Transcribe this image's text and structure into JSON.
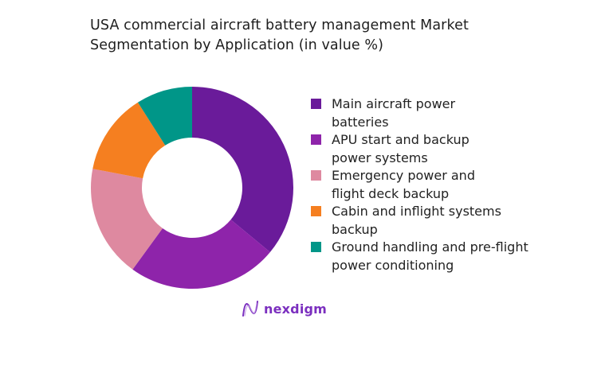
{
  "chart_data": {
    "type": "pie",
    "subtype": "donut",
    "title": "USA commercial aircraft battery management Market Segmentation by Application (in value %)",
    "categories": [
      "Main aircraft power batteries",
      "APU start and backup power systems",
      "Emergency power and flight deck backup",
      "Cabin and inflight systems backup",
      "Ground handling and pre-flight power conditioning"
    ],
    "values": [
      36,
      24,
      18,
      13,
      9
    ],
    "colors": [
      "#6a1b9a",
      "#8e24aa",
      "#de89a0",
      "#f57f20",
      "#009688"
    ],
    "legend_position": "right",
    "start_angle_deg": 0,
    "direction": "clockwise"
  },
  "header": {
    "title_line1": "USA commercial aircraft battery management Market",
    "title_line2": "Segmentation by Application (in value %)"
  },
  "legend": {
    "items": [
      {
        "label": "Main aircraft power batteries",
        "color": "#6a1b9a"
      },
      {
        "label": "APU start and backup power systems",
        "color": "#8e24aa"
      },
      {
        "label": "Emergency power and flight deck backup",
        "color": "#de89a0"
      },
      {
        "label": "Cabin and inflight systems backup",
        "color": "#f57f20"
      },
      {
        "label": "Ground handling and pre-flight power conditioning",
        "color": "#009688"
      }
    ]
  },
  "brand": {
    "name": "nexdigm",
    "color": "#7b2fbf"
  }
}
